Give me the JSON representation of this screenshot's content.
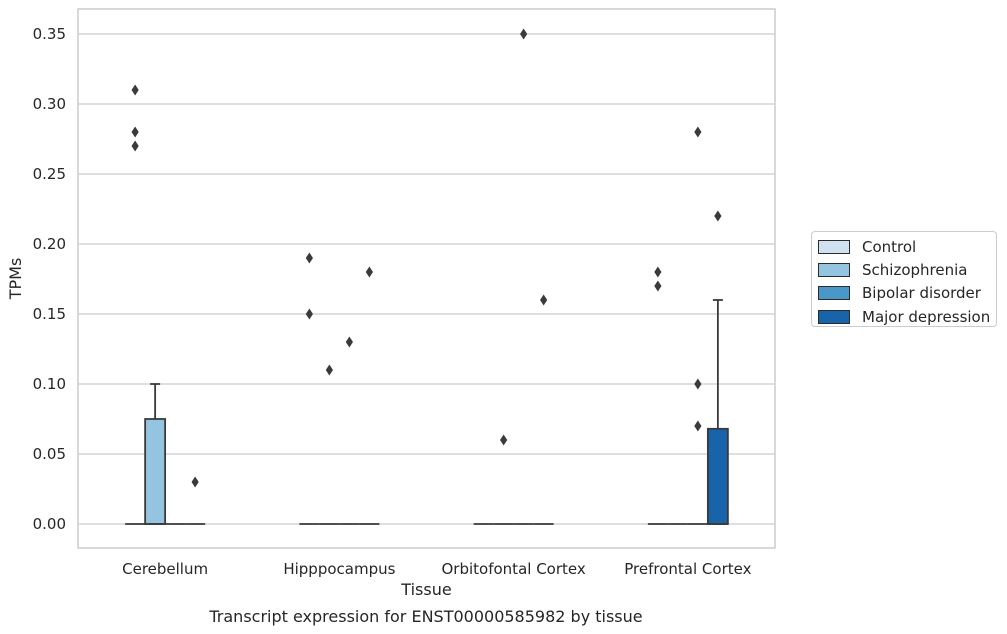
{
  "chart_data": {
    "type": "box",
    "xlabel": "Tissue",
    "ylabel": "TPMs",
    "caption": "Transcript expression for ENST00000585982 by tissue",
    "ylim": [
      -0.017,
      0.367
    ],
    "yticks": [
      "0.00",
      "0.05",
      "0.10",
      "0.15",
      "0.20",
      "0.25",
      "0.30",
      "0.35"
    ],
    "ytick_values": [
      0,
      0.05,
      0.1,
      0.15,
      0.2,
      0.25,
      0.3,
      0.35
    ],
    "grid": "horizontal",
    "legend_placement": "right",
    "categories": [
      "Cerebellum",
      "Hipppocampus",
      "Orbitofontal Cortex",
      "Prefrontal Cortex"
    ],
    "series": [
      {
        "name": "Control",
        "color": "#d0e1f2",
        "boxes": [
          {
            "q1": 0,
            "median": 0,
            "q3": 0,
            "whisker_low": 0,
            "whisker_high": 0,
            "outliers": [
              0.31,
              0.28,
              0.27
            ]
          },
          {
            "q1": 0,
            "median": 0,
            "q3": 0,
            "whisker_low": 0,
            "whisker_high": 0,
            "outliers": [
              0.19,
              0.15
            ]
          },
          {
            "q1": 0,
            "median": 0,
            "q3": 0,
            "whisker_low": 0,
            "whisker_high": 0,
            "outliers": []
          },
          {
            "q1": 0,
            "median": 0,
            "q3": 0,
            "whisker_low": 0,
            "whisker_high": 0,
            "outliers": [
              0.18,
              0.17
            ]
          }
        ]
      },
      {
        "name": "Schizophrenia",
        "color": "#94c4df",
        "boxes": [
          {
            "q1": 0,
            "median": 0,
            "q3": 0.075,
            "whisker_low": 0,
            "whisker_high": 0.1,
            "outliers": []
          },
          {
            "q1": 0,
            "median": 0,
            "q3": 0,
            "whisker_low": 0,
            "whisker_high": 0,
            "outliers": [
              0.11
            ]
          },
          {
            "q1": 0,
            "median": 0,
            "q3": 0,
            "whisker_low": 0,
            "whisker_high": 0,
            "outliers": [
              0.06
            ]
          },
          {
            "q1": 0,
            "median": 0,
            "q3": 0,
            "whisker_low": 0,
            "whisker_high": 0,
            "outliers": []
          }
        ]
      },
      {
        "name": "Bipolar disorder",
        "color": "#4a98c9",
        "boxes": [
          {
            "q1": 0,
            "median": 0,
            "q3": 0,
            "whisker_low": 0,
            "whisker_high": 0,
            "outliers": []
          },
          {
            "q1": 0,
            "median": 0,
            "q3": 0,
            "whisker_low": 0,
            "whisker_high": 0,
            "outliers": [
              0.13
            ]
          },
          {
            "q1": 0,
            "median": 0,
            "q3": 0,
            "whisker_low": 0,
            "whisker_high": 0,
            "outliers": [
              0.35
            ]
          },
          {
            "q1": 0,
            "median": 0,
            "q3": 0,
            "whisker_low": 0,
            "whisker_high": 0,
            "outliers": [
              0.28,
              0.1,
              0.07
            ]
          }
        ]
      },
      {
        "name": "Major depression",
        "color": "#1764ab",
        "boxes": [
          {
            "q1": 0,
            "median": 0,
            "q3": 0,
            "whisker_low": 0,
            "whisker_high": 0,
            "outliers": [
              0.03
            ]
          },
          {
            "q1": 0,
            "median": 0,
            "q3": 0,
            "whisker_low": 0,
            "whisker_high": 0,
            "outliers": [
              0.18
            ]
          },
          {
            "q1": 0,
            "median": 0,
            "q3": 0,
            "whisker_low": 0,
            "whisker_high": 0,
            "outliers": [
              0.16
            ]
          },
          {
            "q1": 0,
            "median": 0,
            "q3": 0.068,
            "whisker_low": 0,
            "whisker_high": 0.16,
            "outliers": [
              0.22
            ]
          }
        ]
      }
    ]
  }
}
